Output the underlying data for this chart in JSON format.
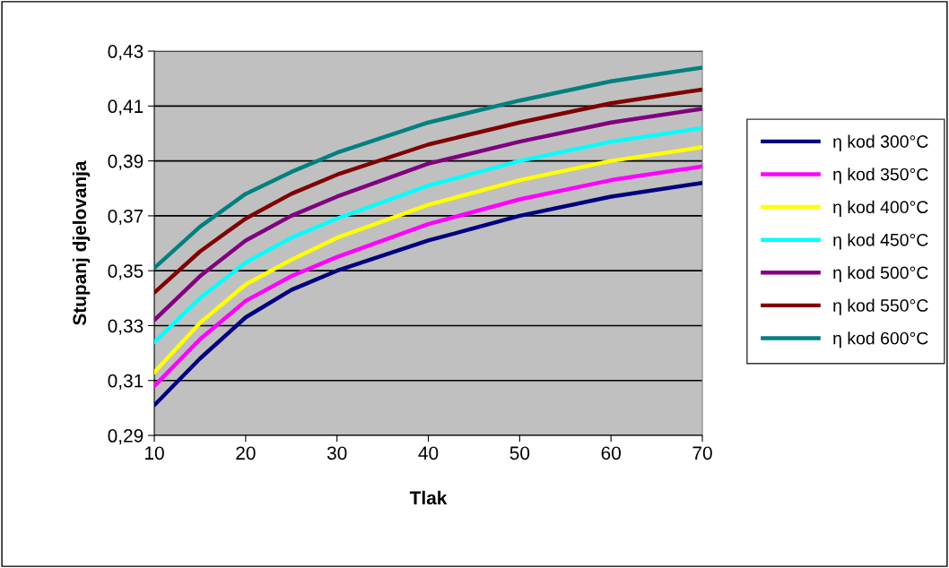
{
  "chart_data": {
    "type": "line",
    "xlabel": "Tlak",
    "ylabel": "Stupanj djelovanja",
    "x": [
      10,
      15,
      20,
      25,
      30,
      40,
      50,
      60,
      70
    ],
    "xlim": [
      10,
      70
    ],
    "xticks": [
      10,
      20,
      30,
      40,
      50,
      60,
      70
    ],
    "ylim": [
      0.29,
      0.43
    ],
    "yticks": [
      {
        "value": 0.29,
        "label": "0,29"
      },
      {
        "value": 0.31,
        "label": "0,31"
      },
      {
        "value": 0.33,
        "label": "0,33"
      },
      {
        "value": 0.35,
        "label": "0,35"
      },
      {
        "value": 0.37,
        "label": "0,37"
      },
      {
        "value": 0.39,
        "label": "0,39"
      },
      {
        "value": 0.41,
        "label": "0,41"
      },
      {
        "value": 0.43,
        "label": "0,43"
      }
    ],
    "grid": "y",
    "legend": "right",
    "marker": "none",
    "line_style": "solid",
    "series": [
      {
        "name": "η kod 300°C",
        "color": "#000080",
        "values": [
          0.301,
          0.318,
          0.333,
          0.343,
          0.35,
          0.361,
          0.37,
          0.377,
          0.382
        ]
      },
      {
        "name": "η kod 350°C",
        "color": "#ff00ff",
        "values": [
          0.308,
          0.325,
          0.339,
          0.348,
          0.355,
          0.367,
          0.376,
          0.383,
          0.388
        ]
      },
      {
        "name": "η kod 400°C",
        "color": "#ffff00",
        "values": [
          0.313,
          0.331,
          0.345,
          0.354,
          0.362,
          0.374,
          0.383,
          0.39,
          0.395
        ]
      },
      {
        "name": "η kod 450°C",
        "color": "#00ffff",
        "values": [
          0.324,
          0.34,
          0.353,
          0.362,
          0.369,
          0.381,
          0.39,
          0.397,
          0.402
        ]
      },
      {
        "name": "η kod 500°C",
        "color": "#800080",
        "values": [
          0.332,
          0.348,
          0.361,
          0.37,
          0.377,
          0.389,
          0.397,
          0.404,
          0.409
        ]
      },
      {
        "name": "η kod 550°C",
        "color": "#800000",
        "values": [
          0.342,
          0.357,
          0.369,
          0.378,
          0.385,
          0.396,
          0.404,
          0.411,
          0.416
        ]
      },
      {
        "name": "η kod 600°C",
        "color": "#008080",
        "values": [
          0.351,
          0.366,
          0.378,
          0.386,
          0.393,
          0.404,
          0.412,
          0.419,
          0.424
        ]
      }
    ]
  }
}
